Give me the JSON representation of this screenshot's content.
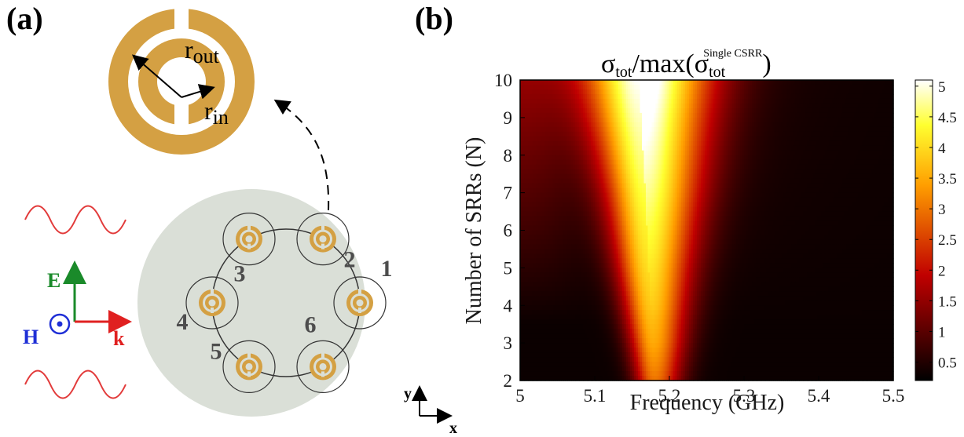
{
  "panel_a": {
    "label": "(a)",
    "ring_labels": [
      "1",
      "2",
      "3",
      "4",
      "5",
      "6"
    ],
    "r_out_label": "r",
    "r_out_sub": "out",
    "r_in_label": "r",
    "r_in_sub": "in",
    "field_E": "E",
    "field_H": "H",
    "field_k": "k",
    "axis_y": "y",
    "axis_x": "x",
    "colors": {
      "ring": "#d4a043",
      "disk": "#dadfd7",
      "wave": "#e23a3a",
      "E": "#1a8a2a",
      "H": "#1f2fd6",
      "k": "#e02020"
    }
  },
  "panel_b": {
    "label": "(b)",
    "title_sigma": "σ",
    "title_tot": "tot",
    "title_mid": "/max(",
    "title_sigma2": "σ",
    "title_tot2": "tot",
    "title_sup": "Single CSRR",
    "title_end": ")"
  },
  "chart_data": {
    "type": "heatmap",
    "xlabel": "Frequency (GHz)",
    "ylabel": "Number of SRRs (N)",
    "xlim": [
      5,
      5.5
    ],
    "ylim": [
      2,
      10
    ],
    "xticks": [
      "5",
      "5.1",
      "5.2",
      "5.3",
      "5.4",
      "5.5"
    ],
    "yticks": [
      "2",
      "3",
      "4",
      "5",
      "6",
      "7",
      "8",
      "9",
      "10"
    ],
    "colorbar_ticks": [
      "0.5",
      "1",
      "1.5",
      "2",
      "2.5",
      "3",
      "3.5",
      "4",
      "4.5",
      "5"
    ],
    "colorbar_range": [
      0.2,
      5.1
    ],
    "colormap": "hot",
    "N": [
      2,
      3,
      4,
      5,
      6,
      7,
      8,
      9,
      10
    ],
    "peak_frequency_GHz": [
      5.18,
      5.178,
      5.175,
      5.172,
      5.17,
      5.168,
      5.165,
      5.162,
      5.16
    ],
    "peak_value": [
      3.0,
      3.5,
      3.8,
      4.0,
      4.2,
      4.4,
      4.6,
      4.8,
      5.0
    ]
  }
}
